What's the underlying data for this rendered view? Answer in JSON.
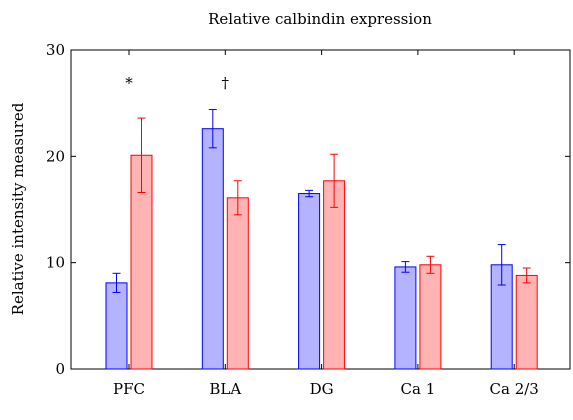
{
  "chart_data": {
    "type": "bar",
    "title": "Relative calbindin expression",
    "xlabel": "",
    "ylabel": "Relative intensity measured",
    "ylim": [
      0,
      30
    ],
    "yticks": [
      0,
      10,
      20,
      30
    ],
    "categories": [
      "PFC",
      "BLA",
      "DG",
      "Ca 1",
      "Ca 2/3"
    ],
    "series": [
      {
        "values": [
          8.1,
          22.6,
          16.5,
          9.6,
          9.8
        ],
        "errors": [
          0.9,
          1.8,
          0.3,
          0.5,
          1.9
        ],
        "fill": "#b3b3ff",
        "stroke": "#0000ff"
      },
      {
        "values": [
          20.1,
          16.1,
          17.7,
          9.8,
          8.8
        ],
        "errors": [
          3.5,
          1.6,
          2.5,
          0.8,
          0.7
        ],
        "fill": "#ffb3b3",
        "stroke": "#ff0000"
      }
    ],
    "annotations": [
      {
        "text": "*",
        "category": "PFC"
      },
      {
        "text": "†",
        "category": "BLA"
      }
    ],
    "grid": false,
    "legend": "none"
  }
}
